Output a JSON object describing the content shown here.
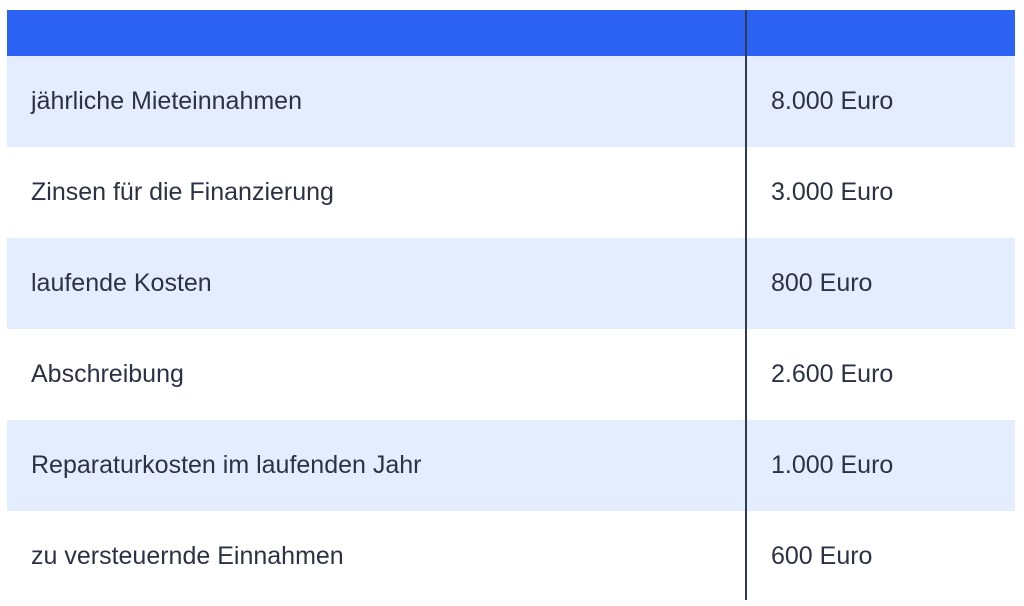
{
  "table": {
    "rows": [
      {
        "label": "jährliche Mieteinnahmen",
        "value": "8.000 Euro"
      },
      {
        "label": "Zinsen für die Finanzierung",
        "value": "3.000 Euro"
      },
      {
        "label": "laufende Kosten",
        "value": "800 Euro"
      },
      {
        "label": "Abschreibung",
        "value": "2.600 Euro"
      },
      {
        "label": "Reparaturkosten im laufenden Jahr",
        "value": "1.000 Euro"
      },
      {
        "label": "zu versteuernde Einnahmen",
        "value": "600 Euro"
      }
    ]
  },
  "colors": {
    "header": "#2b62f4",
    "row_alt": "#e3edfd",
    "row_plain": "#ffffff",
    "text": "#2b3245",
    "divider": "#2f3a55"
  }
}
